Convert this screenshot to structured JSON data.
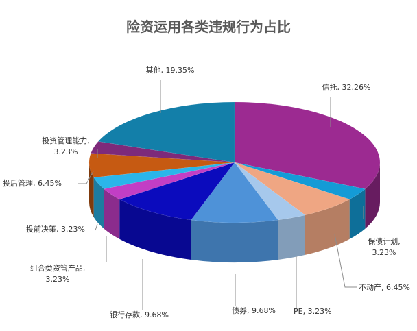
{
  "chart_data": {
    "type": "pie",
    "style": "3d",
    "title": "险资运用各类违规行为占比",
    "slices": [
      {
        "label": "信托",
        "value": 32.26,
        "display": "信托, 32.26%",
        "color": "#9c2a91"
      },
      {
        "label": "保债计划",
        "value": 3.23,
        "display_lines": [
          "保债计划,",
          "3.23%"
        ],
        "color": "#149bd6"
      },
      {
        "label": "不动产",
        "value": 6.45,
        "display": "不动产, 6.45%",
        "color": "#efa683"
      },
      {
        "label": "PE",
        "value": 3.23,
        "display": "PE, 3.23%",
        "color": "#a6c8ec"
      },
      {
        "label": "债券",
        "value": 9.68,
        "display": "债券, 9.68%",
        "color": "#4e92d8"
      },
      {
        "label": "银行存款",
        "value": 9.68,
        "display": "银行存款, 9.68%",
        "color": "#0b0bbd"
      },
      {
        "label": "组合类资管产品",
        "value": 3.23,
        "display_lines": [
          "组合类资管产品,",
          "3.23%"
        ],
        "color": "#c23ec5"
      },
      {
        "label": "投前决策",
        "value": 3.23,
        "display": "投前决策, 3.23%",
        "color": "#2bb5ea"
      },
      {
        "label": "投后管理",
        "value": 6.45,
        "display": "投后管理, 6.45%",
        "color": "#c65a12"
      },
      {
        "label": "投资管理能力",
        "value": 3.23,
        "display_lines": [
          "投资管理能力,",
          "3.23%"
        ],
        "color": "#7d2a7a"
      },
      {
        "label": "其他",
        "value": 19.35,
        "display": "其他, 19.35%",
        "color": "#137fa9"
      }
    ]
  }
}
